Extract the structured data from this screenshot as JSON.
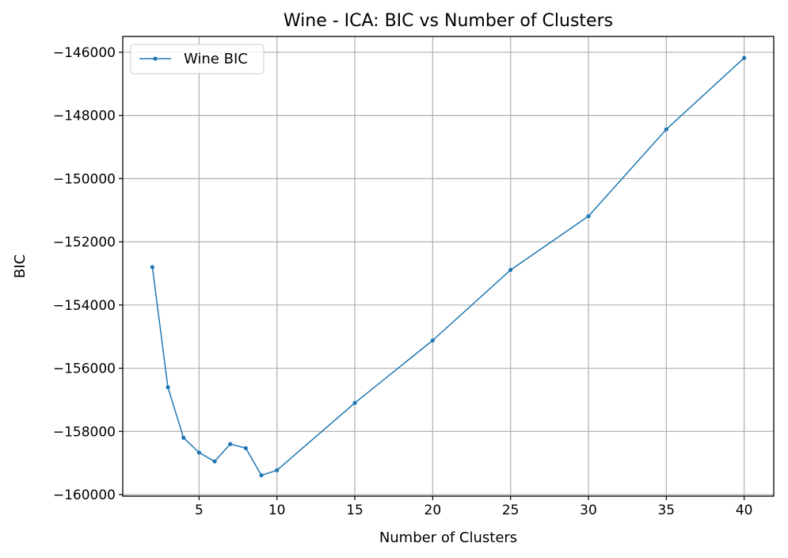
{
  "chart_data": {
    "type": "line",
    "title": "Wine - ICA: BIC vs Number of Clusters",
    "xlabel": "Number of Clusters",
    "ylabel": "BIC",
    "xlim": [
      0.1,
      41.9
    ],
    "ylim": [
      -160050,
      -145500
    ],
    "xticks": [
      5,
      10,
      15,
      20,
      25,
      30,
      35,
      40
    ],
    "yticks": [
      -160000,
      -158000,
      -156000,
      -154000,
      -152000,
      -150000,
      -148000,
      -146000
    ],
    "xtick_labels": [
      "5",
      "10",
      "15",
      "20",
      "25",
      "30",
      "35",
      "40"
    ],
    "ytick_labels": [
      "−160000",
      "−158000",
      "−156000",
      "−154000",
      "−152000",
      "−150000",
      "−148000",
      "−146000"
    ],
    "grid": true,
    "legend_position": "top-left",
    "series": [
      {
        "name": "Wine BIC",
        "color": "#1f77b4",
        "marker": "circle",
        "x": [
          2,
          3,
          4,
          5,
          6,
          7,
          8,
          9,
          10,
          15,
          20,
          25,
          30,
          35,
          40
        ],
        "y": [
          -152800,
          -156600,
          -158200,
          -158670,
          -158950,
          -158400,
          -158530,
          -159390,
          -159230,
          -157100,
          -155120,
          -152890,
          -151190,
          -148440,
          -146180
        ]
      }
    ]
  }
}
